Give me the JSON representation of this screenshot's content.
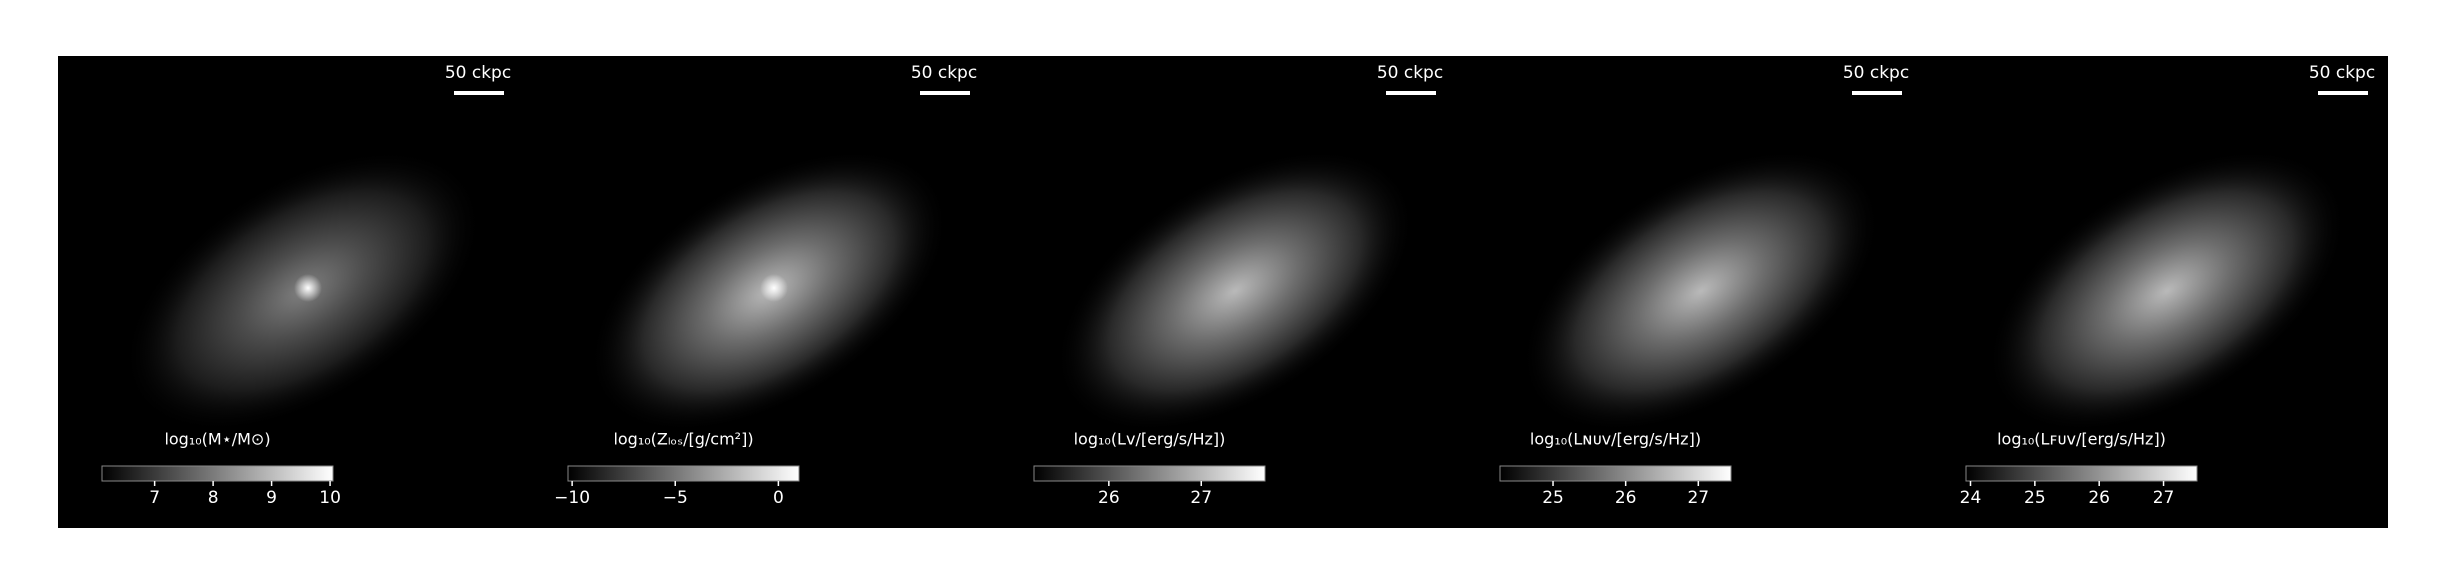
{
  "chart_data": [
    {
      "type": "image",
      "scale_bar": "50 ckpc",
      "colorbar_label": "log₁₀(M⋆/M⊙)",
      "clim": [
        6.1,
        10.05
      ],
      "cticks": [
        7,
        8,
        9,
        10
      ]
    },
    {
      "type": "image",
      "scale_bar": "50 ckpc",
      "colorbar_label": "log₁₀(Zₗₒₛ/[g/cm²])",
      "clim": [
        -10.2,
        1.0
      ],
      "cticks": [
        {
          "value": -10,
          "label": "−10"
        },
        {
          "value": -5,
          "label": "−5"
        },
        0
      ]
    },
    {
      "type": "image",
      "scale_bar": "50 ckpc",
      "colorbar_label": "log₁₀(Lᴠ/[erg/s/Hz])",
      "clim": [
        25.19,
        27.69
      ],
      "cticks": [
        26,
        27
      ]
    },
    {
      "type": "image",
      "scale_bar": "50 ckpc",
      "colorbar_label": "log₁₀(Lɴᴜᴠ/[erg/s/Hz])",
      "clim": [
        24.27,
        27.45
      ],
      "cticks": [
        25,
        26,
        27
      ]
    },
    {
      "type": "image",
      "scale_bar": "50 ckpc",
      "colorbar_label": "log₁₀(Lꜰᴜᴠ/[erg/s/Hz])",
      "clim": [
        23.93,
        27.52
      ],
      "cticks": [
        24,
        25,
        26,
        27
      ]
    }
  ]
}
